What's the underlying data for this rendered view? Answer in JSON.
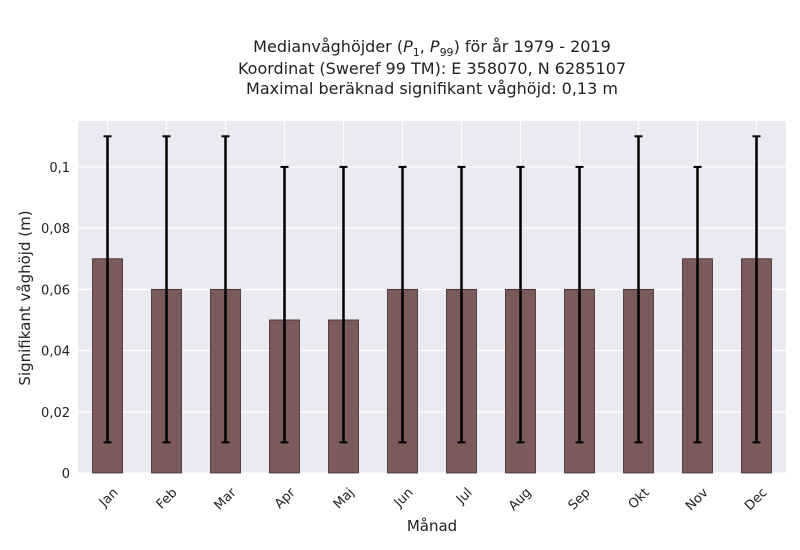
{
  "chart_data": {
    "type": "bar",
    "title_lines": [
      "Medianvåghöjder (P1, P99) för år 1979 - 2019",
      "Koordinat (Sweref 99 TM): E 358070, N 6285107",
      "Maximal beräknad signifikant våghöjd: 0,13 m"
    ],
    "xlabel": "Månad",
    "ylabel": "Signifikant våghöjd (m)",
    "categories": [
      "Jan",
      "Feb",
      "Mar",
      "Apr",
      "Maj",
      "Jun",
      "Jul",
      "Aug",
      "Sep",
      "Okt",
      "Nov",
      "Dec"
    ],
    "values": [
      0.07,
      0.06,
      0.06,
      0.05,
      0.05,
      0.06,
      0.06,
      0.06,
      0.06,
      0.06,
      0.07,
      0.07
    ],
    "p1": [
      0.01,
      0.01,
      0.01,
      0.01,
      0.01,
      0.01,
      0.01,
      0.01,
      0.01,
      0.01,
      0.01,
      0.01
    ],
    "p99": [
      0.11,
      0.11,
      0.11,
      0.1,
      0.1,
      0.1,
      0.1,
      0.1,
      0.1,
      0.11,
      0.1,
      0.11
    ],
    "ylim": [
      0,
      0.115
    ],
    "yticks": [
      0,
      0.02,
      0.04,
      0.06,
      0.08,
      0.1
    ],
    "ytick_labels": [
      "0",
      "0,02",
      "0,04",
      "0,06",
      "0,08",
      "0,1"
    ],
    "grid": true,
    "colors": {
      "bar": "#7b5a5a",
      "bar_edge": "#3a2a2a",
      "errorbar": "#000000",
      "plot_bg": "#eaeaf2",
      "grid": "#ffffff"
    }
  }
}
